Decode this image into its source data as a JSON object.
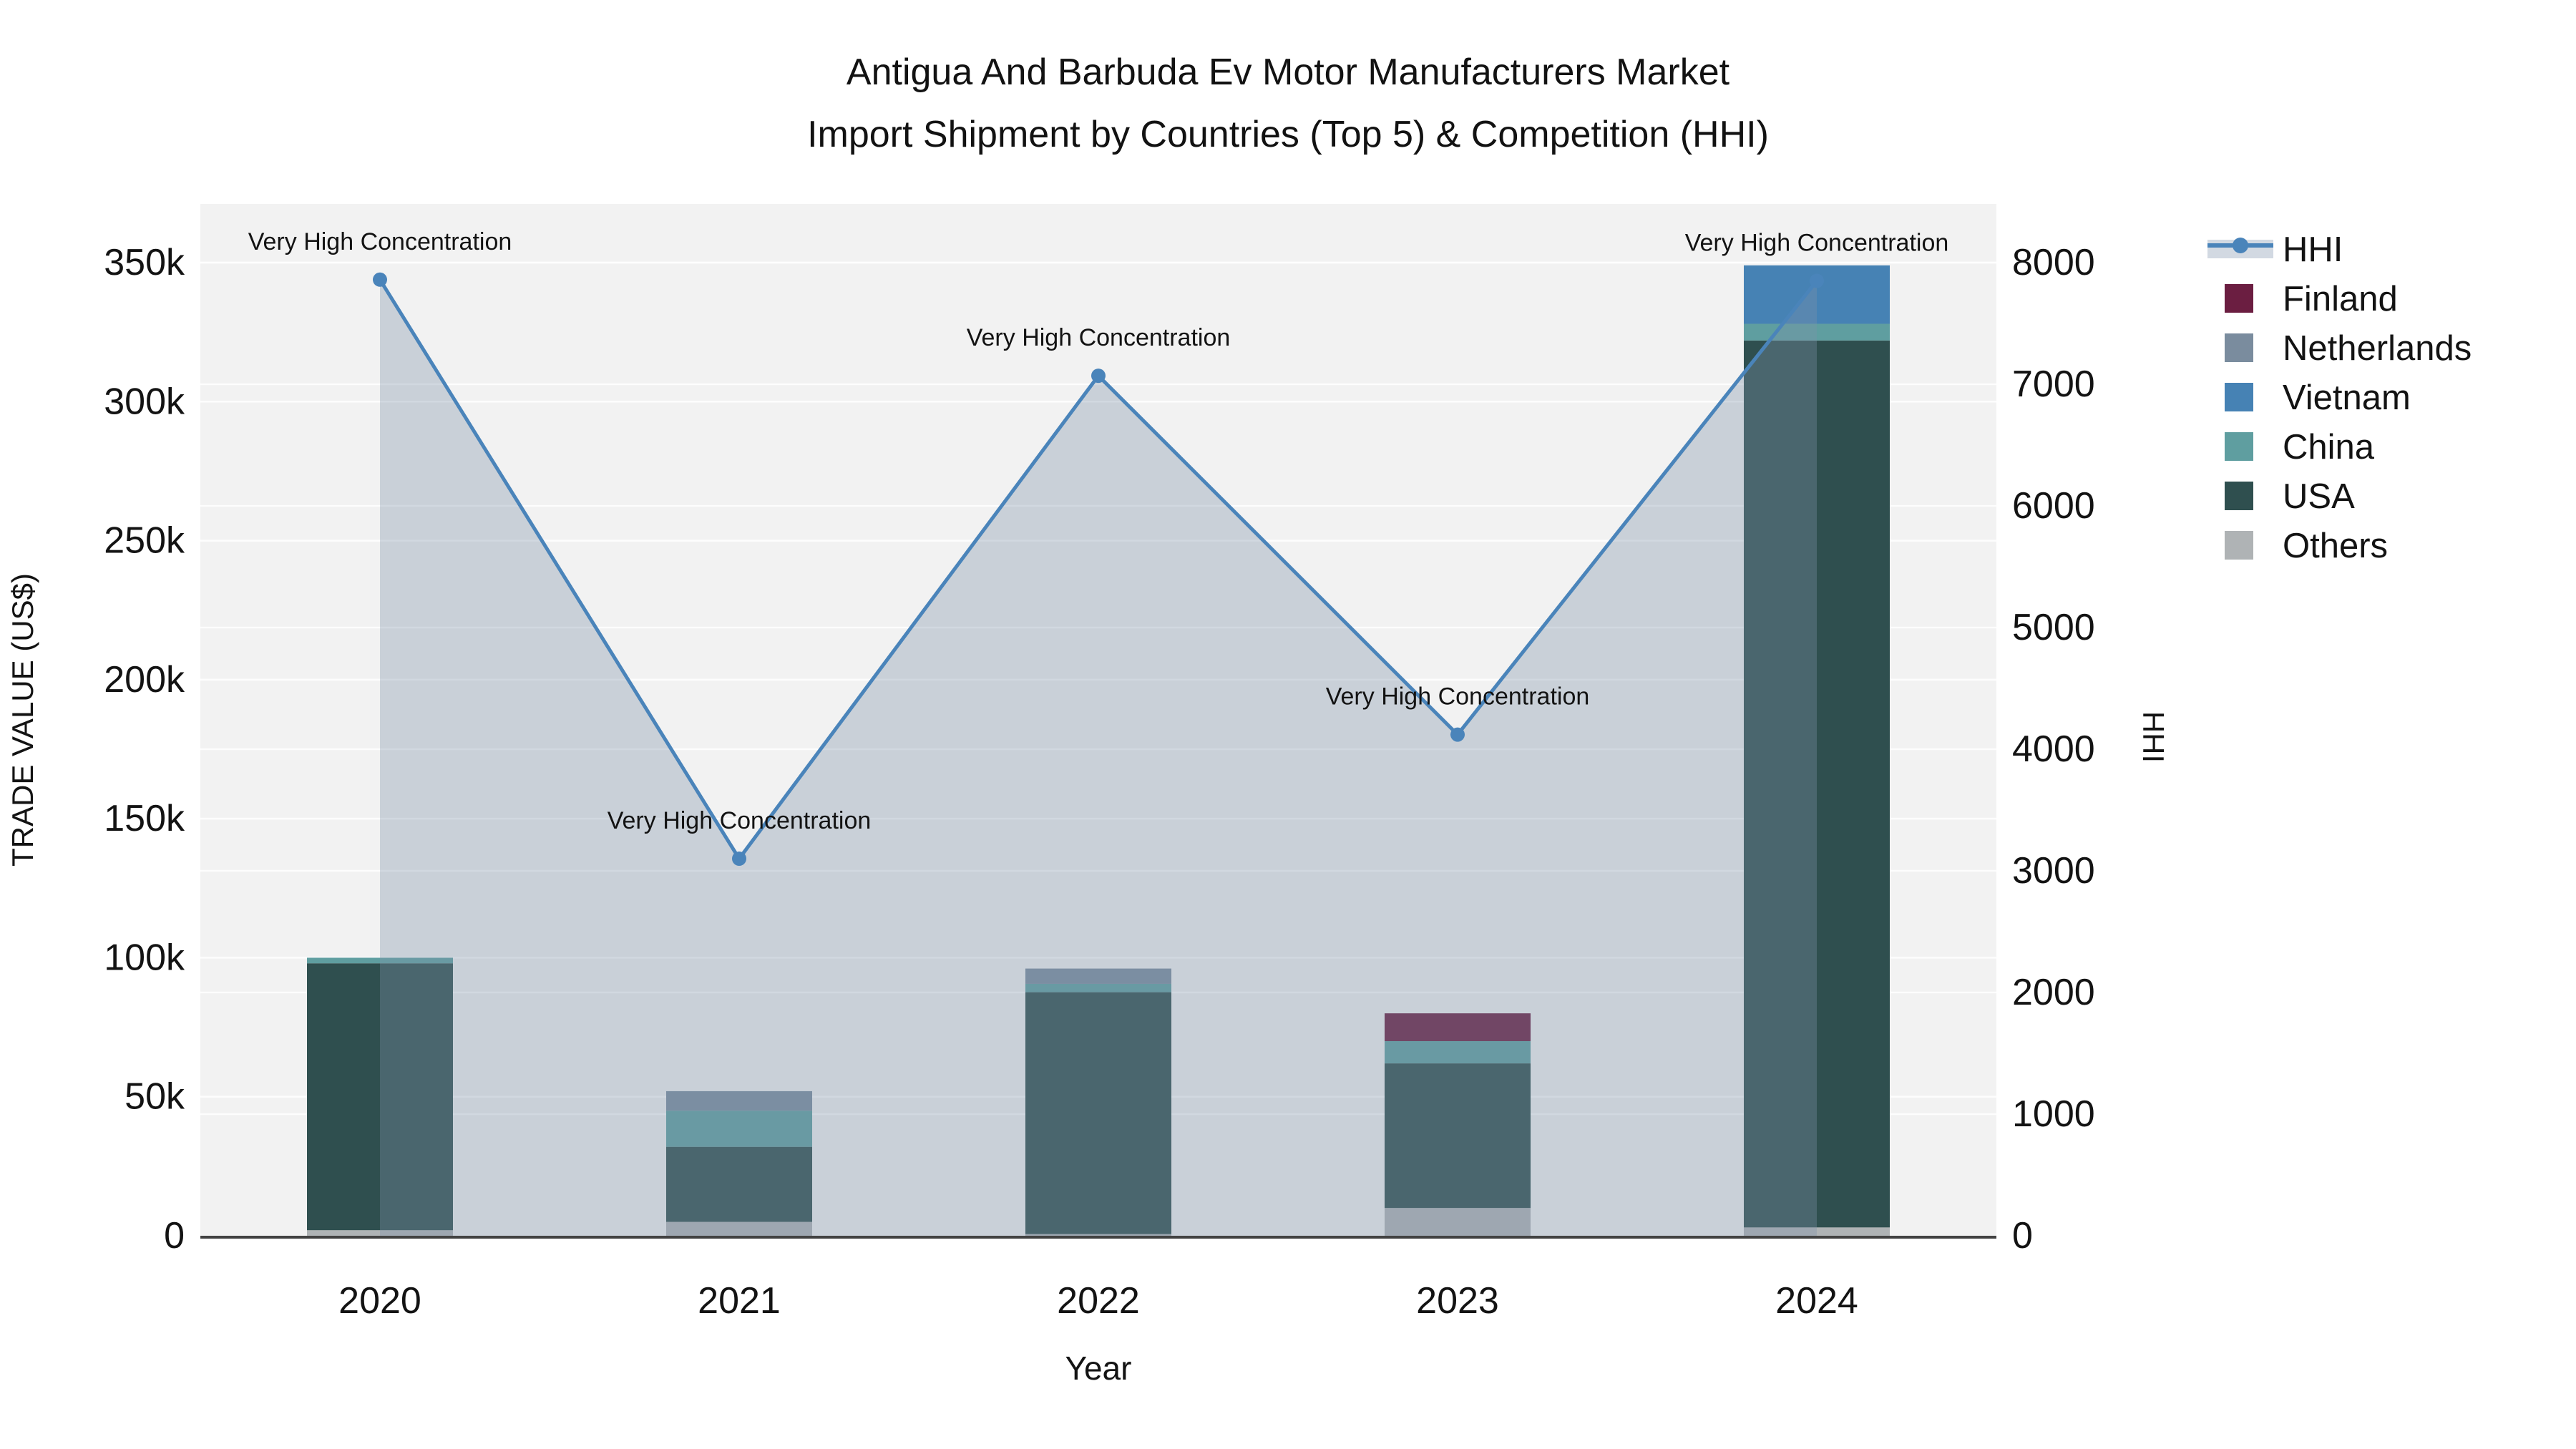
{
  "title": {
    "line1": "Antigua And Barbuda Ev Motor Manufacturers Market",
    "line2": "Import Shipment by Countries (Top 5) & Competition (HHI)"
  },
  "axes": {
    "x": {
      "title": "Year",
      "categories": [
        "2020",
        "2021",
        "2022",
        "2023",
        "2024"
      ]
    },
    "y_left": {
      "title": "TRADE VALUE (US$)",
      "tick_labels": [
        "0",
        "50k",
        "100k",
        "150k",
        "200k",
        "250k",
        "300k",
        "350k"
      ],
      "tick_values": [
        0,
        50000,
        100000,
        150000,
        200000,
        250000,
        300000,
        350000
      ],
      "max": 350000
    },
    "y_right": {
      "title": "HHI",
      "tick_labels": [
        "0",
        "1000",
        "2000",
        "3000",
        "4000",
        "5000",
        "6000",
        "7000",
        "8000"
      ],
      "tick_values": [
        0,
        1000,
        2000,
        3000,
        4000,
        5000,
        6000,
        7000,
        8000
      ],
      "max": 8000
    }
  },
  "legend": {
    "items": [
      {
        "label": "HHI",
        "type": "line",
        "color": "#4A84BA",
        "band": "#D2D9E2"
      },
      {
        "label": "Finland",
        "type": "swatch",
        "color": "#6B1E41"
      },
      {
        "label": "Netherlands",
        "type": "swatch",
        "color": "#7A8C9E"
      },
      {
        "label": "Vietnam",
        "type": "swatch",
        "color": "#4682B4"
      },
      {
        "label": "China",
        "type": "swatch",
        "color": "#5F9EA0"
      },
      {
        "label": "USA",
        "type": "swatch",
        "color": "#2F4F4F"
      },
      {
        "label": "Others",
        "type": "swatch",
        "color": "#AFB3B5"
      }
    ]
  },
  "annotation_text": "Very High Concentration",
  "chart_data": {
    "type": "bar",
    "subtype": "stacked-bars-with-line",
    "categories": [
      "2020",
      "2021",
      "2022",
      "2023",
      "2024"
    ],
    "series": [
      {
        "name": "Others",
        "axis": "left",
        "color": "#AFB3B5",
        "values": [
          2000,
          5000,
          600,
          10000,
          3000
        ]
      },
      {
        "name": "USA",
        "axis": "left",
        "color": "#2F4F4F",
        "values": [
          96000,
          27000,
          87000,
          52000,
          319000
        ]
      },
      {
        "name": "China",
        "axis": "left",
        "color": "#5F9EA0",
        "values": [
          2000,
          13000,
          3000,
          8000,
          6000
        ]
      },
      {
        "name": "Vietnam",
        "axis": "left",
        "color": "#4682B4",
        "values": [
          0,
          0,
          0,
          0,
          21000
        ]
      },
      {
        "name": "Netherlands",
        "axis": "left",
        "color": "#7A8C9E",
        "values": [
          0,
          7000,
          5500,
          0,
          0
        ]
      },
      {
        "name": "Finland",
        "axis": "left",
        "color": "#6B1E41",
        "values": [
          0,
          0,
          0,
          10000,
          0
        ]
      }
    ],
    "line": {
      "name": "HHI",
      "axis": "right",
      "color": "#4A84BA",
      "fill_color": "rgba(125,145,170,0.35)",
      "values": [
        7860,
        3100,
        7070,
        4120,
        7850
      ],
      "annotations": [
        "Very High Concentration",
        "Very High Concentration",
        "Very High Concentration",
        "Very High Concentration",
        "Very High Concentration"
      ]
    },
    "title": "Antigua And Barbuda Ev Motor Manufacturers Market Import Shipment by Countries (Top 5) & Competition (HHI)",
    "xlabel": "Year",
    "ylabel_left": "TRADE VALUE (US$)",
    "ylabel_right": "HHI",
    "ylim_left": [
      0,
      350000
    ],
    "ylim_right": [
      0,
      8000
    ],
    "grid": true,
    "legend_position": "right"
  },
  "style": {
    "plot_bg": "#F2F2F2",
    "grid_color": "#FFFFFF",
    "axis_line_color": "#424242",
    "text_color": "#131313"
  }
}
